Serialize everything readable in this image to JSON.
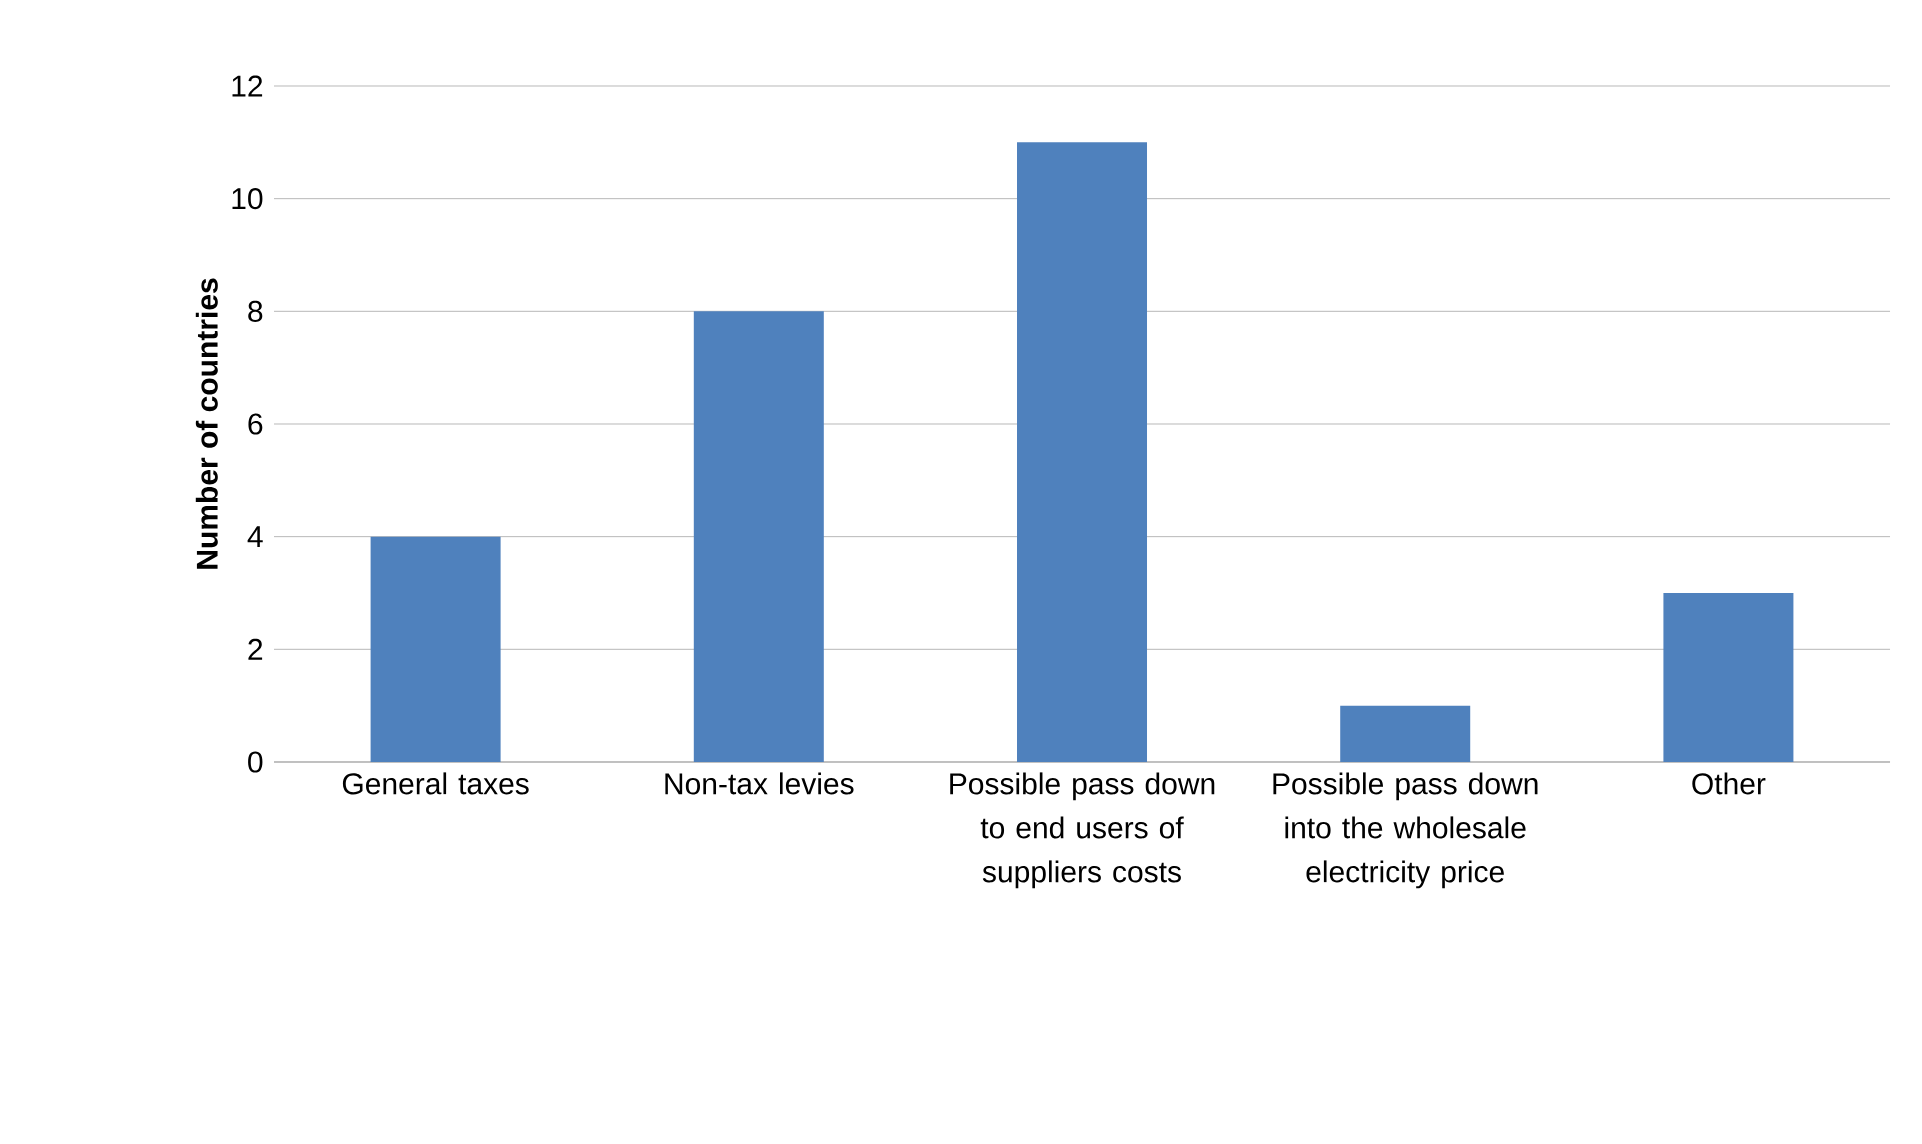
{
  "chart_data": {
    "type": "bar",
    "ylabel": "Number of countries",
    "categories": [
      "General taxes",
      "Non-tax levies",
      "Possible pass down to end users of suppliers costs",
      "Possible pass down into the wholesale electricity price",
      "Other"
    ],
    "values": [
      4,
      8,
      11,
      1,
      3
    ],
    "color": "#4f81bd",
    "ylim": [
      0,
      12
    ],
    "yticks": [
      0,
      2,
      4,
      6,
      8,
      10,
      12
    ],
    "grid": "y"
  }
}
